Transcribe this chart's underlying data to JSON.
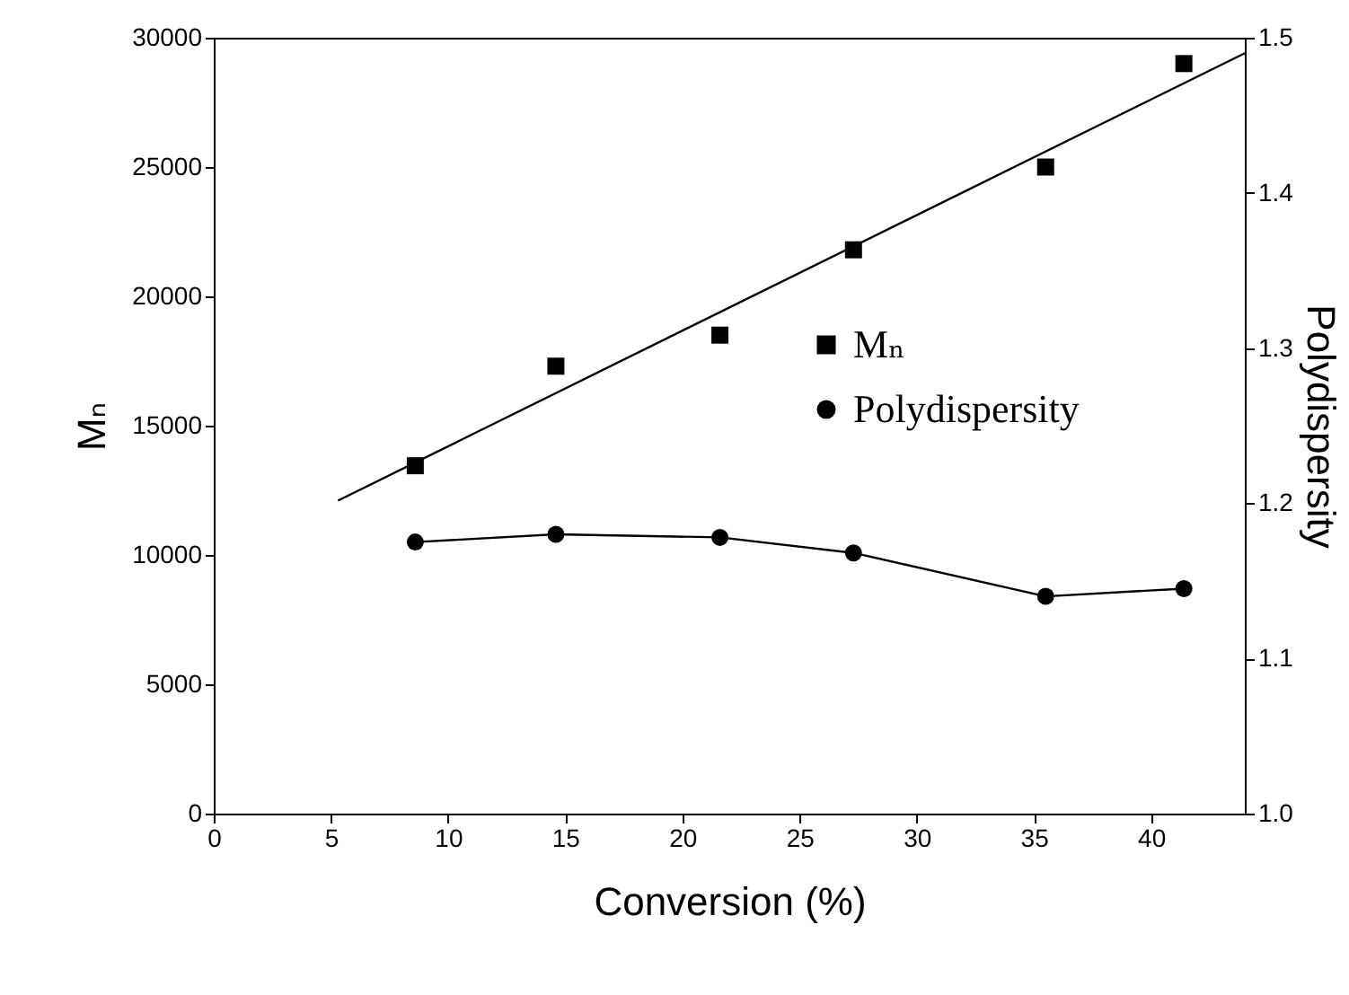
{
  "chart_data": {
    "type": "scatter",
    "xlabel": "Conversion (%)",
    "ylabel": "Mₙ",
    "y2label": "Polydispersity",
    "xlim": [
      0,
      44
    ],
    "xticks": [
      0,
      5,
      10,
      15,
      20,
      25,
      30,
      35,
      40
    ],
    "ylim": [
      0,
      30000
    ],
    "yticks": [
      0,
      5000,
      10000,
      15000,
      20000,
      25000,
      30000
    ],
    "y2lim": [
      1.0,
      1.5
    ],
    "y2ticks": [
      {
        "value": 1.0,
        "label": "1.0"
      },
      1.1,
      1.2,
      1.3,
      1.4,
      1.5
    ],
    "grid": false,
    "legend": "right",
    "line_style": "solid",
    "series": [
      {
        "name": "Mₙ",
        "marker": "square",
        "color": "#000000",
        "x": [
          8.6,
          14.6,
          21.6,
          27.3,
          35.5,
          41.4
        ],
        "values": [
          13450,
          17300,
          18500,
          21800,
          25000,
          29000
        ]
      },
      {
        "type": "line",
        "marker": "none",
        "color": "#000000",
        "x": [
          5.3,
          44
        ],
        "values": [
          12100,
          29400
        ]
      },
      {
        "name": "Polydispersity",
        "type": "line",
        "marker": "circle",
        "axis": "y2",
        "color": "#000000",
        "x": [
          8.6,
          14.6,
          21.6,
          27.3,
          35.5,
          41.4
        ],
        "values": [
          1.175,
          1.18,
          1.178,
          1.168,
          1.14,
          1.145
        ]
      }
    ]
  }
}
